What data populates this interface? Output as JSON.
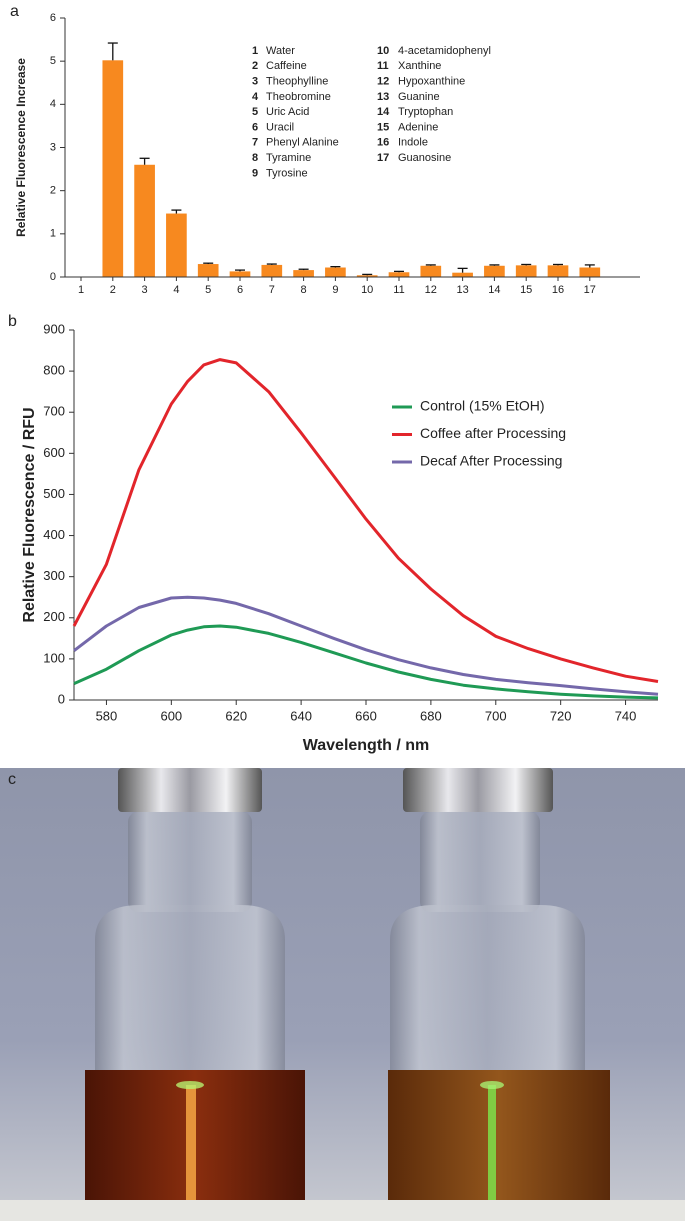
{
  "chart_data": [
    {
      "type": "bar",
      "panel_label": "a",
      "ylabel": "Relative Fluorescence Increase",
      "categories": [
        "1",
        "2",
        "3",
        "4",
        "5",
        "6",
        "7",
        "8",
        "9",
        "10",
        "11",
        "12",
        "13",
        "14",
        "15",
        "16",
        "17"
      ],
      "values": [
        null,
        5.02,
        2.6,
        1.47,
        0.3,
        0.13,
        0.28,
        0.16,
        0.22,
        0.04,
        0.11,
        0.26,
        0.1,
        0.26,
        0.27,
        0.27,
        0.22
      ],
      "errors": [
        null,
        0.4,
        0.15,
        0.08,
        0.02,
        0.03,
        0.02,
        0.02,
        0.02,
        0.02,
        0.02,
        0.02,
        0.1,
        0.02,
        0.02,
        0.02,
        0.06
      ],
      "color": "#f7891f",
      "ylim": [
        0,
        6
      ],
      "yticks": [
        0,
        1,
        2,
        3,
        4,
        5,
        6
      ],
      "legend_items": [
        {
          "number": "1",
          "name": "Water"
        },
        {
          "number": "2",
          "name": "Caffeine"
        },
        {
          "number": "3",
          "name": "Theophylline"
        },
        {
          "number": "4",
          "name": "Theobromine"
        },
        {
          "number": "5",
          "name": "Uric Acid"
        },
        {
          "number": "6",
          "name": "Uracil"
        },
        {
          "number": "7",
          "name": "Phenyl Alanine"
        },
        {
          "number": "8",
          "name": "Tyramine"
        },
        {
          "number": "9",
          "name": "Tyrosine"
        },
        {
          "number": "10",
          "name": "4-acetamidophenyl"
        },
        {
          "number": "11",
          "name": "Xanthine"
        },
        {
          "number": "12",
          "name": "Hypoxanthine"
        },
        {
          "number": "13",
          "name": "Guanine"
        },
        {
          "number": "14",
          "name": "Tryptophan"
        },
        {
          "number": "15",
          "name": "Adenine"
        },
        {
          "number": "16",
          "name": "Indole"
        },
        {
          "number": "17",
          "name": "Guanosine"
        }
      ]
    },
    {
      "type": "line",
      "panel_label": "b",
      "xlabel": "Wavelength / nm",
      "ylabel": "Relative Fluorescence / RFU",
      "x": [
        570,
        580,
        590,
        600,
        605,
        610,
        615,
        620,
        630,
        640,
        650,
        660,
        670,
        680,
        690,
        700,
        710,
        720,
        730,
        740,
        750
      ],
      "series": [
        {
          "name": "Control (15% EtOH)",
          "color": "#1f9a55",
          "values": [
            40,
            75,
            120,
            158,
            170,
            178,
            180,
            177,
            162,
            140,
            115,
            90,
            68,
            50,
            36,
            27,
            20,
            14,
            10,
            7,
            5
          ]
        },
        {
          "name": "Coffee after Processing",
          "color": "#e2252b",
          "values": [
            180,
            330,
            560,
            720,
            775,
            815,
            828,
            820,
            750,
            650,
            545,
            440,
            345,
            270,
            205,
            155,
            125,
            100,
            78,
            58,
            45
          ]
        },
        {
          "name": "Decaf After Processing",
          "color": "#7468aa",
          "values": [
            120,
            180,
            225,
            248,
            250,
            248,
            243,
            235,
            210,
            180,
            150,
            122,
            98,
            78,
            62,
            50,
            42,
            35,
            27,
            20,
            14
          ]
        }
      ],
      "xlim": [
        570,
        750
      ],
      "ylim": [
        0,
        900
      ],
      "xticks": [
        580,
        600,
        620,
        640,
        660,
        680,
        700,
        720,
        740
      ],
      "yticks": [
        0,
        100,
        200,
        300,
        400,
        500,
        600,
        700,
        800,
        900
      ],
      "legend": "upper right"
    }
  ],
  "photo": {
    "panel_label": "c"
  }
}
